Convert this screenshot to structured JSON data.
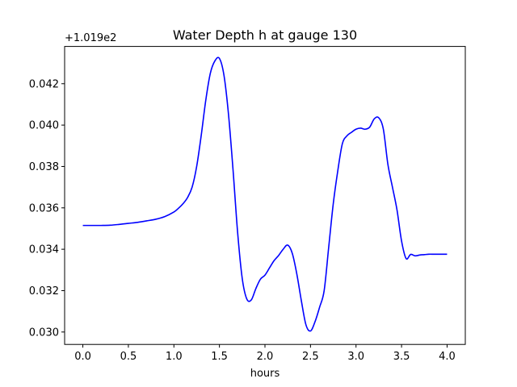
{
  "chart_data": {
    "type": "line",
    "title": "Water Depth h at gauge 130",
    "xlabel": "hours",
    "ylabel": "",
    "y_offset_label": "+1.019e2",
    "xlim": [
      -0.2,
      4.2
    ],
    "ylim": [
      0.0294,
      0.0438
    ],
    "x_ticks": [
      0.0,
      0.5,
      1.0,
      1.5,
      2.0,
      2.5,
      3.0,
      3.5,
      4.0
    ],
    "x_tick_labels": [
      "0.0",
      "0.5",
      "1.0",
      "1.5",
      "2.0",
      "2.5",
      "3.0",
      "3.5",
      "4.0"
    ],
    "y_ticks": [
      0.03,
      0.032,
      0.034,
      0.036,
      0.038,
      0.04,
      0.042
    ],
    "y_tick_labels": [
      "0.030",
      "0.032",
      "0.034",
      "0.036",
      "0.038",
      "0.040",
      "0.042"
    ],
    "grid": false,
    "series": [
      {
        "color": "#0000ff",
        "x": [
          0.0,
          0.1,
          0.2,
          0.3,
          0.4,
          0.5,
          0.6,
          0.7,
          0.8,
          0.9,
          1.0,
          1.05,
          1.1,
          1.15,
          1.2,
          1.25,
          1.3,
          1.35,
          1.4,
          1.45,
          1.5,
          1.55,
          1.6,
          1.65,
          1.7,
          1.75,
          1.8,
          1.85,
          1.9,
          1.95,
          2.0,
          2.05,
          2.1,
          2.15,
          2.2,
          2.25,
          2.3,
          2.35,
          2.4,
          2.45,
          2.5,
          2.55,
          2.6,
          2.65,
          2.7,
          2.75,
          2.8,
          2.85,
          2.9,
          2.95,
          3.0,
          3.05,
          3.1,
          3.15,
          3.2,
          3.25,
          3.3,
          3.35,
          3.4,
          3.45,
          3.5,
          3.55,
          3.6,
          3.65,
          3.7,
          3.75,
          3.8,
          3.85,
          3.9,
          3.95,
          4.0
        ],
        "y": [
          0.03515,
          0.03515,
          0.03515,
          0.03516,
          0.0352,
          0.03525,
          0.0353,
          0.03537,
          0.03545,
          0.03558,
          0.0358,
          0.03598,
          0.0362,
          0.0365,
          0.037,
          0.038,
          0.0395,
          0.0412,
          0.0425,
          0.0431,
          0.04322,
          0.0424,
          0.0405,
          0.0378,
          0.0348,
          0.0326,
          0.0316,
          0.03155,
          0.0321,
          0.03255,
          0.03275,
          0.0331,
          0.03345,
          0.0337,
          0.034,
          0.0342,
          0.0338,
          0.0328,
          0.0315,
          0.03035,
          0.03005,
          0.0305,
          0.0312,
          0.032,
          0.0341,
          0.0362,
          0.0378,
          0.0391,
          0.03948,
          0.03965,
          0.0398,
          0.03985,
          0.0398,
          0.0399,
          0.0403,
          0.04035,
          0.0398,
          0.0381,
          0.037,
          0.0359,
          0.0344,
          0.03355,
          0.03375,
          0.03368,
          0.03372,
          0.03374,
          0.03376,
          0.03376,
          0.03376,
          0.03376,
          0.03376
        ]
      }
    ]
  }
}
